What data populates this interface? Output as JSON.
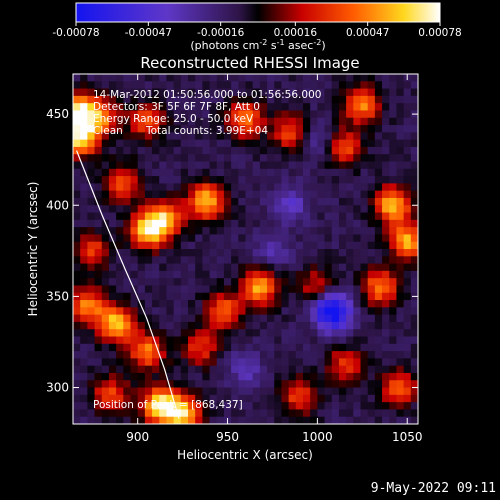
{
  "chart_data": {
    "type": "heatmap",
    "title": "Reconstructed RHESSI Image",
    "xlabel": "Heliocentric X (arcsec)",
    "ylabel": "Heliocentric Y (arcsec)",
    "xlim": [
      864,
      1056
    ],
    "ylim": [
      280,
      472
    ],
    "x_ticks": [
      900,
      950,
      1000,
      1050
    ],
    "y_ticks": [
      300,
      350,
      400,
      450
    ],
    "colorbar": {
      "min": -0.00078,
      "max": 0.00078,
      "ticks": [
        "-0.00078",
        "-0.00047",
        "-0.00016",
        "0.00016",
        "0.00047",
        "0.00078"
      ],
      "tick_values": [
        -0.00078,
        -0.00047,
        -0.00016,
        0.00016,
        0.00047,
        0.00078
      ],
      "units_pre": "(photons cm",
      "units_sup1": "-2",
      "units_mid": " s",
      "units_sup2": "-1",
      "units_mid2": " asec",
      "units_sup3": "-2",
      "units_post": ")"
    },
    "annotations": {
      "time_range": "14-Mar-2012 01:50:56.000 to 01:56:56.000",
      "detectors": "Detectors: 3F 5F 6F 7F 8F, Att 0",
      "energy": "Energy Range: 25.0 - 50.0 keV",
      "method": "Clean",
      "counts": "Total counts: 3.99E+04",
      "peak": "Position of Peak = [868,437]"
    },
    "limb_curve": [
      [
        866,
        430
      ],
      [
        880,
        395
      ],
      [
        893,
        365
      ],
      [
        905,
        338
      ],
      [
        915,
        310
      ],
      [
        923,
        283
      ]
    ],
    "hotspots": [
      {
        "x": 867,
        "y": 452,
        "value": 0.00078
      },
      {
        "x": 868,
        "y": 437,
        "value": 0.00078
      },
      {
        "x": 905,
        "y": 386,
        "value": 0.0007
      },
      {
        "x": 915,
        "y": 392,
        "value": 0.00065
      },
      {
        "x": 938,
        "y": 402,
        "value": 0.0007
      },
      {
        "x": 892,
        "y": 412,
        "value": 0.00048
      },
      {
        "x": 880,
        "y": 448,
        "value": 0.0005
      },
      {
        "x": 905,
        "y": 446,
        "value": 0.00045
      },
      {
        "x": 960,
        "y": 447,
        "value": 0.00055
      },
      {
        "x": 985,
        "y": 440,
        "value": 0.00045
      },
      {
        "x": 1025,
        "y": 455,
        "value": 0.00058
      },
      {
        "x": 1015,
        "y": 432,
        "value": 0.00045
      },
      {
        "x": 1042,
        "y": 400,
        "value": 0.0007
      },
      {
        "x": 1050,
        "y": 380,
        "value": 0.00065
      },
      {
        "x": 1035,
        "y": 355,
        "value": 0.00055
      },
      {
        "x": 1045,
        "y": 300,
        "value": 0.0005
      },
      {
        "x": 968,
        "y": 355,
        "value": 0.00065
      },
      {
        "x": 948,
        "y": 342,
        "value": 0.0005
      },
      {
        "x": 1000,
        "y": 355,
        "value": 0.0004
      },
      {
        "x": 888,
        "y": 335,
        "value": 0.0007
      },
      {
        "x": 905,
        "y": 320,
        "value": 0.00055
      },
      {
        "x": 872,
        "y": 345,
        "value": 0.00055
      },
      {
        "x": 935,
        "y": 322,
        "value": 0.0004
      },
      {
        "x": 912,
        "y": 290,
        "value": 0.00078
      },
      {
        "x": 925,
        "y": 286,
        "value": 0.0007
      },
      {
        "x": 885,
        "y": 296,
        "value": 0.00045
      },
      {
        "x": 990,
        "y": 295,
        "value": 0.00042
      },
      {
        "x": 1015,
        "y": 312,
        "value": 0.0004
      },
      {
        "x": 875,
        "y": 375,
        "value": 0.0004
      }
    ],
    "coldspots": [
      {
        "x": 1010,
        "y": 340,
        "value": -0.0005
      },
      {
        "x": 1005,
        "y": 345,
        "value": -0.0004
      },
      {
        "x": 985,
        "y": 400,
        "value": -0.0003
      },
      {
        "x": 960,
        "y": 310,
        "value": -0.00025
      },
      {
        "x": 1000,
        "y": 435,
        "value": -0.00022
      },
      {
        "x": 975,
        "y": 375,
        "value": -0.00022
      }
    ]
  },
  "footer": {
    "date_stamp": "9-May-2022 09:11"
  }
}
